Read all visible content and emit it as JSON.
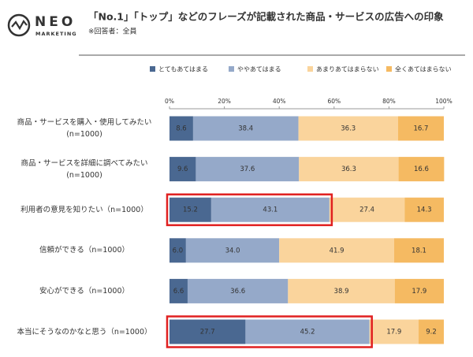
{
  "logo": {
    "name": "NEO",
    "sub": "MARKETING"
  },
  "chart_data": {
    "type": "stacked-bar-horizontal",
    "title": "「No.1」「トップ」などのフレーズが記載された商品・サービスの広告への印象",
    "subtitle": "※回答者：全員",
    "categories": [
      "商品・サービスを購入・使用してみたい\n(n=1000)",
      "商品・サービスを詳細に調べてみたい\n(n=1000)",
      "利用者の意見を知りたい（n=1000）",
      "信頼ができる（n=1000）",
      "安心ができる（n=1000）",
      "本当にそうなのかなと思う（n=1000）"
    ],
    "series": [
      {
        "name": "とてもあてはまる",
        "color": "#4a6891",
        "values": [
          8.6,
          9.6,
          15.2,
          6.0,
          6.6,
          27.7
        ],
        "value_labels": [
          "8.6",
          "9.6",
          "15.2",
          "6.0",
          "6.6",
          "27.7"
        ]
      },
      {
        "name": "ややあてはまる",
        "color": "#95a9c9",
        "values": [
          38.4,
          37.6,
          43.1,
          34.0,
          36.6,
          45.2
        ],
        "value_labels": [
          "38.4",
          "37.6",
          "43.1",
          "34.0",
          "36.6",
          "45.2"
        ]
      },
      {
        "name": "あまりあてはまらない",
        "color": "#fad49c",
        "values": [
          36.3,
          36.3,
          27.4,
          41.9,
          38.9,
          17.9
        ],
        "value_labels": [
          "36.3",
          "36.3",
          "27.4",
          "41.9",
          "38.9",
          "17.9"
        ]
      },
      {
        "name": "全くあてはまらない",
        "color": "#f5ba62",
        "values": [
          16.7,
          16.6,
          14.3,
          18.1,
          17.9,
          9.2
        ],
        "value_labels": [
          "16.7",
          "16.6",
          "14.3",
          "18.1",
          "17.9",
          "9.2"
        ]
      }
    ],
    "xlim": [
      0,
      100
    ],
    "xticks": [
      {
        "value": 0,
        "label": "0%"
      },
      {
        "value": 20,
        "label": "20%"
      },
      {
        "value": 40,
        "label": "40%"
      },
      {
        "value": 60,
        "label": "60%"
      },
      {
        "value": 80,
        "label": "80%"
      },
      {
        "value": 100,
        "label": "100%"
      }
    ]
  }
}
